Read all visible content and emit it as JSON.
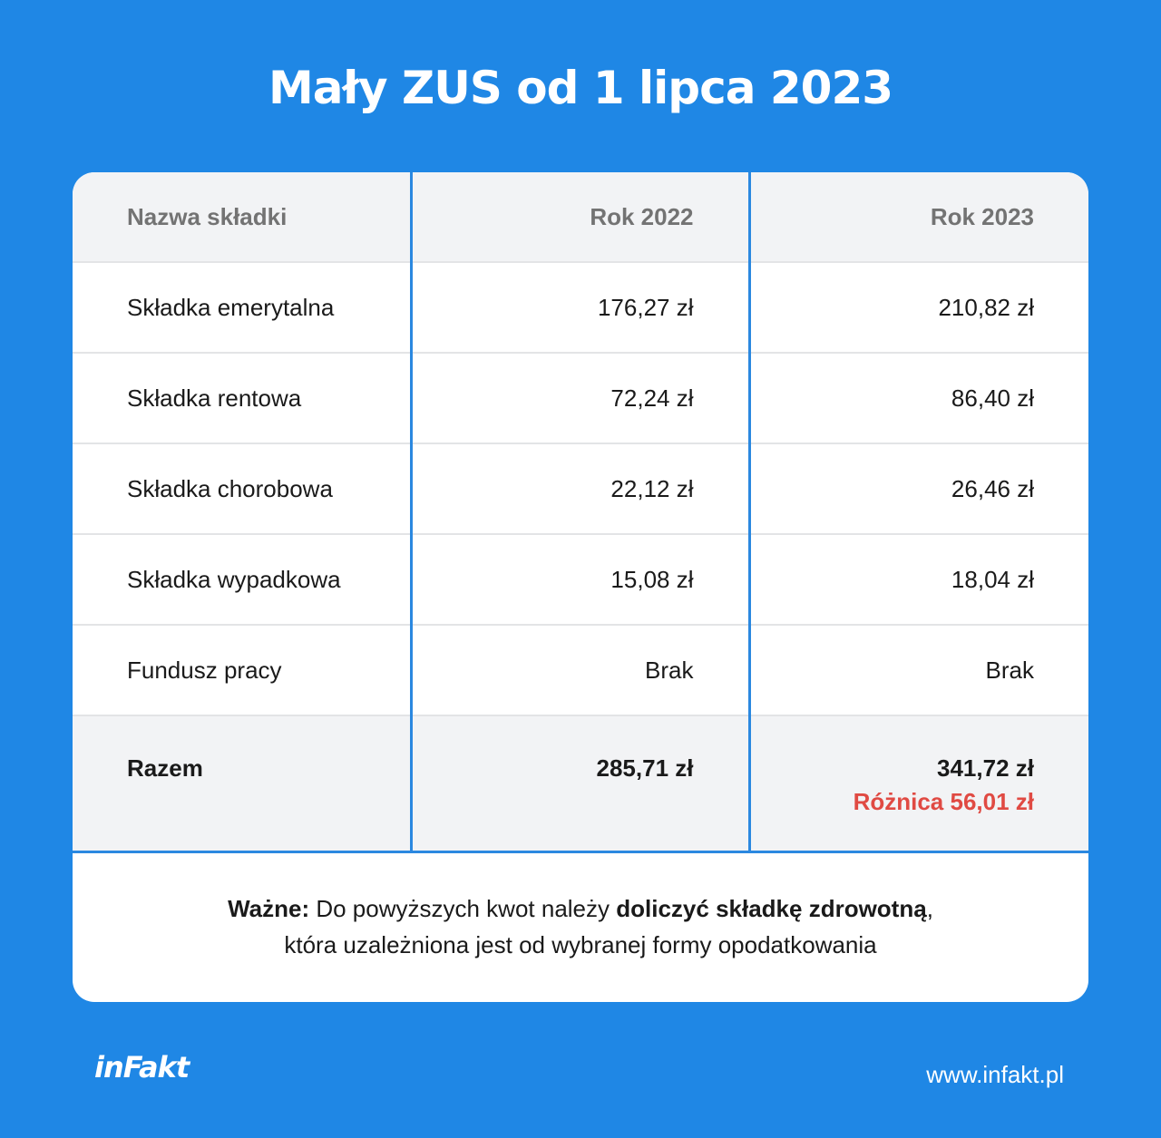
{
  "title": "Mały ZUS od 1 lipca 2023",
  "table": {
    "headers": [
      "Nazwa składki",
      "Rok 2022",
      "Rok 2023"
    ],
    "rows": [
      {
        "name": "Składka emerytalna",
        "y2022": "176,27 zł",
        "y2023": "210,82 zł"
      },
      {
        "name": "Składka rentowa",
        "y2022": "72,24 zł",
        "y2023": "86,40 zł"
      },
      {
        "name": "Składka chorobowa",
        "y2022": "22,12 zł",
        "y2023": "26,46 zł"
      },
      {
        "name": "Składka wypadkowa",
        "y2022": "15,08 zł",
        "y2023": "18,04 zł"
      },
      {
        "name": "Fundusz pracy",
        "y2022": "Brak",
        "y2023": "Brak"
      }
    ],
    "total": {
      "label": "Razem",
      "y2022": "285,71 zł",
      "y2023": "341,72 zł",
      "difference": "Różnica 56,01 zł"
    }
  },
  "note": {
    "bold_lead": "Ważne:",
    "text1": " Do powyższych kwot należy ",
    "bold_mid": "doliczyć składkę zdrowotną",
    "text2": ",",
    "line2": "która uzależniona jest od wybranej formy opodatkowania"
  },
  "footer": {
    "logo": "inFakt",
    "url": "www.infakt.pl"
  },
  "colors": {
    "background": "#1f87e5",
    "divider": "#2b88e0",
    "header_bg": "#f2f3f5",
    "difference": "#e04a43"
  }
}
